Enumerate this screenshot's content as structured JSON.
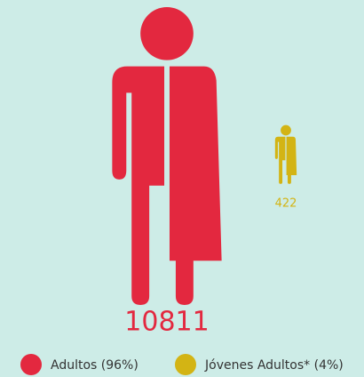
{
  "chart_data": {
    "type": "pictogram",
    "series": [
      {
        "name": "Adultos (96%)",
        "color": "#e3283f",
        "values": [
          10811
        ]
      },
      {
        "name": "Jóvenes Adultos* (4%)",
        "color": "#d3b414",
        "values": [
          422
        ]
      }
    ]
  }
}
